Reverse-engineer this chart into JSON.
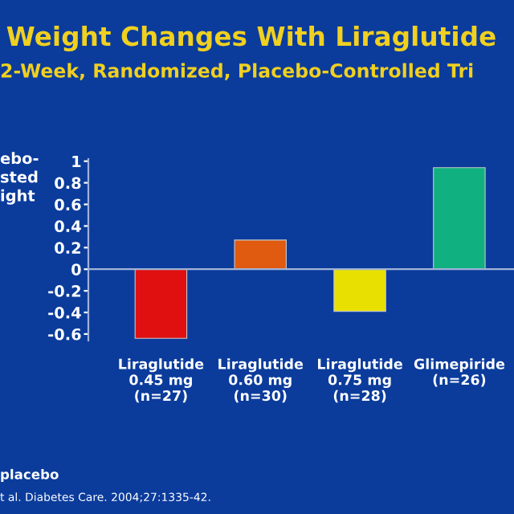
{
  "chart_data": {
    "type": "bar",
    "title": "Weight Changes With Liraglutide",
    "subtitle": "2-Week, Randomized, Placebo-Controlled Tri",
    "ylabel": "ebo-\nsted\night",
    "categories": [
      "Liraglutide\n0.45 mg\n(n=27)",
      "Liraglutide\n0.60 mg\n(n=30)",
      "Liraglutide\n0.75 mg\n(n=28)",
      "Glimepiride\n(n=26)"
    ],
    "values": [
      -0.64,
      0.27,
      -0.39,
      0.94
    ],
    "colors": [
      "#e01010",
      "#e05a10",
      "#e8e000",
      "#10b080"
    ],
    "ylim": [
      -0.66,
      1.02
    ],
    "yticks": [
      -0.6,
      -0.4,
      -0.2,
      0,
      0.2,
      0.4,
      0.6,
      0.8,
      1
    ],
    "grid": false,
    "legend": false,
    "ref_lines": [
      {
        "axis": "y",
        "value": 0,
        "color": "#9fb3d8"
      }
    ],
    "annotations": [
      "placebo",
      "t al. Diabetes Care. 2004;27:1335-42."
    ]
  }
}
